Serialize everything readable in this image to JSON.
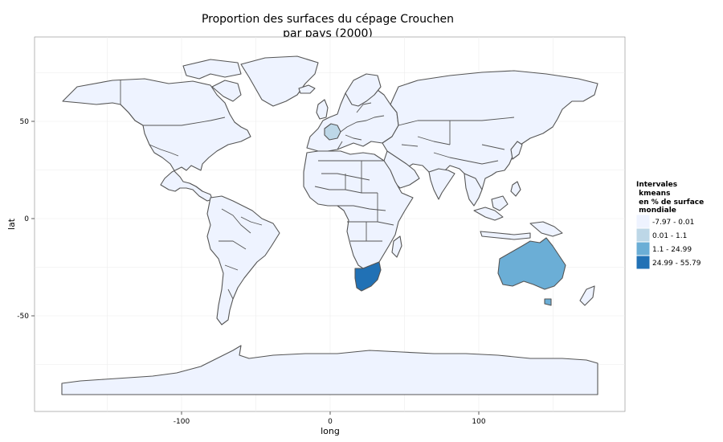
{
  "title_line1": "Proportion des surfaces du cépage Crouchen",
  "title_line2": "par pays (2000)",
  "xlabel": "long",
  "ylabel": "lat",
  "x_ticks": [
    "-100",
    "0",
    "100"
  ],
  "y_ticks": [
    "50",
    "0",
    "-50"
  ],
  "legend": {
    "title": [
      "Intervales",
      " kmeans",
      " en % de surface",
      " mondiale"
    ],
    "items": [
      {
        "label": "-7.97 - 0.01",
        "color": "#eef3ff"
      },
      {
        "label": "0.01 - 1.1",
        "color": "#bdd7e7"
      },
      {
        "label": "1.1 - 24.99",
        "color": "#6baed6"
      },
      {
        "label": "24.99 - 55.79",
        "color": "#2171b5"
      }
    ]
  },
  "colors": {
    "base": "#eef3ff",
    "france": "#bdd7e7",
    "australia": "#6baed6",
    "south_africa": "#2171b5",
    "border": "#555555",
    "grid": "#ececec"
  },
  "chart_data": {
    "type": "choropleth",
    "xlim": [
      -180,
      180
    ],
    "ylim": [
      -90,
      85
    ],
    "regions": [
      {
        "name": "France",
        "class": "0.01 - 1.1"
      },
      {
        "name": "Australia",
        "class": "1.1 - 24.99"
      },
      {
        "name": "South Africa",
        "class": "24.99 - 55.79"
      }
    ]
  }
}
